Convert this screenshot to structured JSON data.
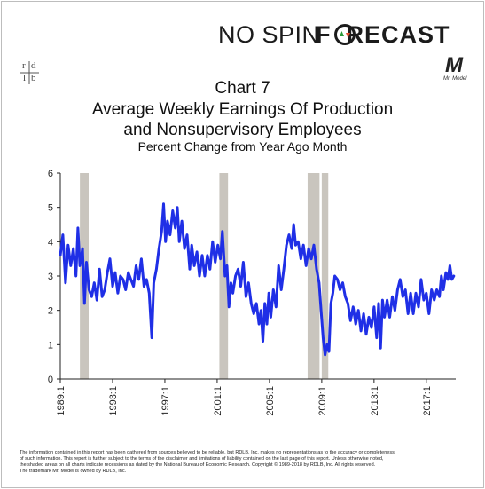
{
  "header": {
    "brand_left": "NO SPIN",
    "brand_right": "F  RECAST",
    "brand_o_colors": [
      "#2a9a3a",
      "#e24a2c"
    ],
    "rdlb": [
      "r",
      "d",
      "l",
      "b"
    ],
    "mr_model_mark": "M",
    "mr_model_text": "Mr. Model"
  },
  "titles": {
    "line1": "Chart 7",
    "line2": "Average Weekly Earnings Of Production",
    "line3": "and Nonsupervisory Employees",
    "subtitle": "Percent Change from Year Ago Month"
  },
  "footer": {
    "line1": "The information contained in this report has been gathered from sources believed to be reliable, but RDLB, Inc. makes no representations as to the accuracy or completeness",
    "line2": "of such information. This report is further subject to the terms of the disclaimer and limitations of liability contained on the last page of this report. Unless otherwise noted,",
    "line3": "the shaded areas on all charts indicate recessions as dated by the National Bureau of Economic Research. Copyright © 1989-2018 by RDLB, Inc. All rights reserved.",
    "line4": "The trademark Mr. Model is owned by RDLB, Inc."
  },
  "chart_data": {
    "type": "line",
    "ylim": [
      0,
      6
    ],
    "yticks": [
      0,
      1,
      2,
      3,
      4,
      5,
      6
    ],
    "xlim": [
      1989.0,
      2019.25
    ],
    "xticks": [
      {
        "value": 1989.0,
        "label": "1989:1"
      },
      {
        "value": 1993.0,
        "label": "1993:1"
      },
      {
        "value": 1997.0,
        "label": "1997:1"
      },
      {
        "value": 2001.0,
        "label": "2001:1"
      },
      {
        "value": 2005.0,
        "label": "2005:1"
      },
      {
        "value": 2009.0,
        "label": "2009:1"
      },
      {
        "value": 2013.0,
        "label": "2013:1"
      },
      {
        "value": 2017.0,
        "label": "2017:1"
      }
    ],
    "recessions": [
      [
        1990.5,
        1991.17
      ],
      [
        2001.17,
        2001.83
      ],
      [
        2007.92,
        2008.83
      ],
      [
        2009.0,
        2009.5
      ]
    ],
    "colors": {
      "line": "#1f2fe6",
      "recession": "#c9c5be",
      "axis": "#222222"
    },
    "series": [
      {
        "points": [
          [
            1989.0,
            3.6
          ],
          [
            1989.2,
            4.2
          ],
          [
            1989.4,
            2.8
          ],
          [
            1989.6,
            3.9
          ],
          [
            1989.8,
            3.3
          ],
          [
            1990.0,
            3.8
          ],
          [
            1990.2,
            3.0
          ],
          [
            1990.35,
            4.4
          ],
          [
            1990.5,
            3.3
          ],
          [
            1990.7,
            3.8
          ],
          [
            1990.85,
            2.2
          ],
          [
            1991.0,
            3.4
          ],
          [
            1991.2,
            2.6
          ],
          [
            1991.4,
            2.4
          ],
          [
            1991.6,
            2.8
          ],
          [
            1991.8,
            2.3
          ],
          [
            1992.0,
            3.2
          ],
          [
            1992.2,
            2.4
          ],
          [
            1992.4,
            2.6
          ],
          [
            1992.6,
            3.1
          ],
          [
            1992.8,
            3.5
          ],
          [
            1993.0,
            2.7
          ],
          [
            1993.2,
            3.1
          ],
          [
            1993.4,
            2.5
          ],
          [
            1993.6,
            3.0
          ],
          [
            1993.8,
            2.9
          ],
          [
            1994.0,
            2.6
          ],
          [
            1994.2,
            3.1
          ],
          [
            1994.4,
            2.9
          ],
          [
            1994.6,
            2.7
          ],
          [
            1994.8,
            3.3
          ],
          [
            1995.0,
            2.9
          ],
          [
            1995.2,
            3.5
          ],
          [
            1995.4,
            2.7
          ],
          [
            1995.6,
            2.9
          ],
          [
            1995.8,
            2.5
          ],
          [
            1996.0,
            1.2
          ],
          [
            1996.15,
            2.8
          ],
          [
            1996.35,
            3.2
          ],
          [
            1996.55,
            3.8
          ],
          [
            1996.75,
            4.3
          ],
          [
            1996.9,
            5.1
          ],
          [
            1997.05,
            4.0
          ],
          [
            1997.2,
            4.6
          ],
          [
            1997.4,
            4.2
          ],
          [
            1997.6,
            4.9
          ],
          [
            1997.8,
            4.4
          ],
          [
            1997.95,
            5.0
          ],
          [
            1998.1,
            4.0
          ],
          [
            1998.3,
            4.6
          ],
          [
            1998.5,
            3.8
          ],
          [
            1998.7,
            4.2
          ],
          [
            1998.9,
            3.2
          ],
          [
            1999.05,
            3.9
          ],
          [
            1999.25,
            3.3
          ],
          [
            1999.45,
            3.7
          ],
          [
            1999.65,
            3.0
          ],
          [
            1999.85,
            3.6
          ],
          [
            2000.05,
            3.0
          ],
          [
            2000.25,
            3.6
          ],
          [
            2000.45,
            3.2
          ],
          [
            2000.65,
            4.0
          ],
          [
            2000.85,
            3.4
          ],
          [
            2001.05,
            3.9
          ],
          [
            2001.25,
            3.5
          ],
          [
            2001.4,
            4.3
          ],
          [
            2001.6,
            3.0
          ],
          [
            2001.75,
            3.3
          ],
          [
            2001.9,
            2.1
          ],
          [
            2002.05,
            2.8
          ],
          [
            2002.2,
            2.5
          ],
          [
            2002.4,
            3.0
          ],
          [
            2002.6,
            3.2
          ],
          [
            2002.8,
            2.7
          ],
          [
            2003.0,
            3.4
          ],
          [
            2003.2,
            2.4
          ],
          [
            2003.4,
            2.8
          ],
          [
            2003.6,
            2.2
          ],
          [
            2003.8,
            1.9
          ],
          [
            2004.0,
            2.2
          ],
          [
            2004.2,
            1.6
          ],
          [
            2004.35,
            2.0
          ],
          [
            2004.5,
            1.1
          ],
          [
            2004.65,
            2.2
          ],
          [
            2004.8,
            1.6
          ],
          [
            2004.95,
            2.5
          ],
          [
            2005.1,
            1.8
          ],
          [
            2005.3,
            2.6
          ],
          [
            2005.5,
            2.1
          ],
          [
            2005.7,
            3.3
          ],
          [
            2005.9,
            2.6
          ],
          [
            2006.1,
            3.2
          ],
          [
            2006.3,
            3.9
          ],
          [
            2006.5,
            4.2
          ],
          [
            2006.7,
            3.8
          ],
          [
            2006.85,
            4.5
          ],
          [
            2007.0,
            3.9
          ],
          [
            2007.2,
            4.0
          ],
          [
            2007.4,
            3.5
          ],
          [
            2007.6,
            3.9
          ],
          [
            2007.8,
            3.3
          ],
          [
            2008.0,
            3.8
          ],
          [
            2008.2,
            3.5
          ],
          [
            2008.4,
            3.9
          ],
          [
            2008.6,
            3.2
          ],
          [
            2008.8,
            2.8
          ],
          [
            2008.95,
            2.0
          ],
          [
            2009.1,
            1.2
          ],
          [
            2009.25,
            0.7
          ],
          [
            2009.4,
            1.0
          ],
          [
            2009.55,
            0.8
          ],
          [
            2009.7,
            2.2
          ],
          [
            2009.85,
            2.5
          ],
          [
            2010.0,
            3.0
          ],
          [
            2010.2,
            2.9
          ],
          [
            2010.4,
            2.6
          ],
          [
            2010.6,
            2.8
          ],
          [
            2010.8,
            2.4
          ],
          [
            2011.0,
            2.2
          ],
          [
            2011.2,
            1.7
          ],
          [
            2011.4,
            2.1
          ],
          [
            2011.6,
            1.6
          ],
          [
            2011.8,
            2.0
          ],
          [
            2012.0,
            1.4
          ],
          [
            2012.2,
            1.9
          ],
          [
            2012.4,
            1.3
          ],
          [
            2012.6,
            1.8
          ],
          [
            2012.8,
            1.5
          ],
          [
            2013.0,
            2.1
          ],
          [
            2013.2,
            1.2
          ],
          [
            2013.35,
            2.2
          ],
          [
            2013.5,
            0.9
          ],
          [
            2013.65,
            2.3
          ],
          [
            2013.8,
            1.8
          ],
          [
            2014.0,
            2.3
          ],
          [
            2014.2,
            1.8
          ],
          [
            2014.4,
            2.4
          ],
          [
            2014.6,
            2.0
          ],
          [
            2014.8,
            2.6
          ],
          [
            2015.0,
            2.9
          ],
          [
            2015.2,
            2.4
          ],
          [
            2015.4,
            2.6
          ],
          [
            2015.6,
            1.9
          ],
          [
            2015.8,
            2.5
          ],
          [
            2016.0,
            1.9
          ],
          [
            2016.2,
            2.5
          ],
          [
            2016.4,
            2.1
          ],
          [
            2016.6,
            2.9
          ],
          [
            2016.8,
            2.3
          ],
          [
            2017.0,
            2.5
          ],
          [
            2017.2,
            1.9
          ],
          [
            2017.4,
            2.6
          ],
          [
            2017.6,
            2.3
          ],
          [
            2017.8,
            2.6
          ],
          [
            2018.0,
            2.4
          ],
          [
            2018.15,
            3.0
          ],
          [
            2018.3,
            2.6
          ],
          [
            2018.5,
            3.1
          ],
          [
            2018.65,
            2.9
          ],
          [
            2018.8,
            3.3
          ],
          [
            2018.95,
            2.9
          ],
          [
            2019.1,
            3.0
          ]
        ]
      }
    ]
  }
}
